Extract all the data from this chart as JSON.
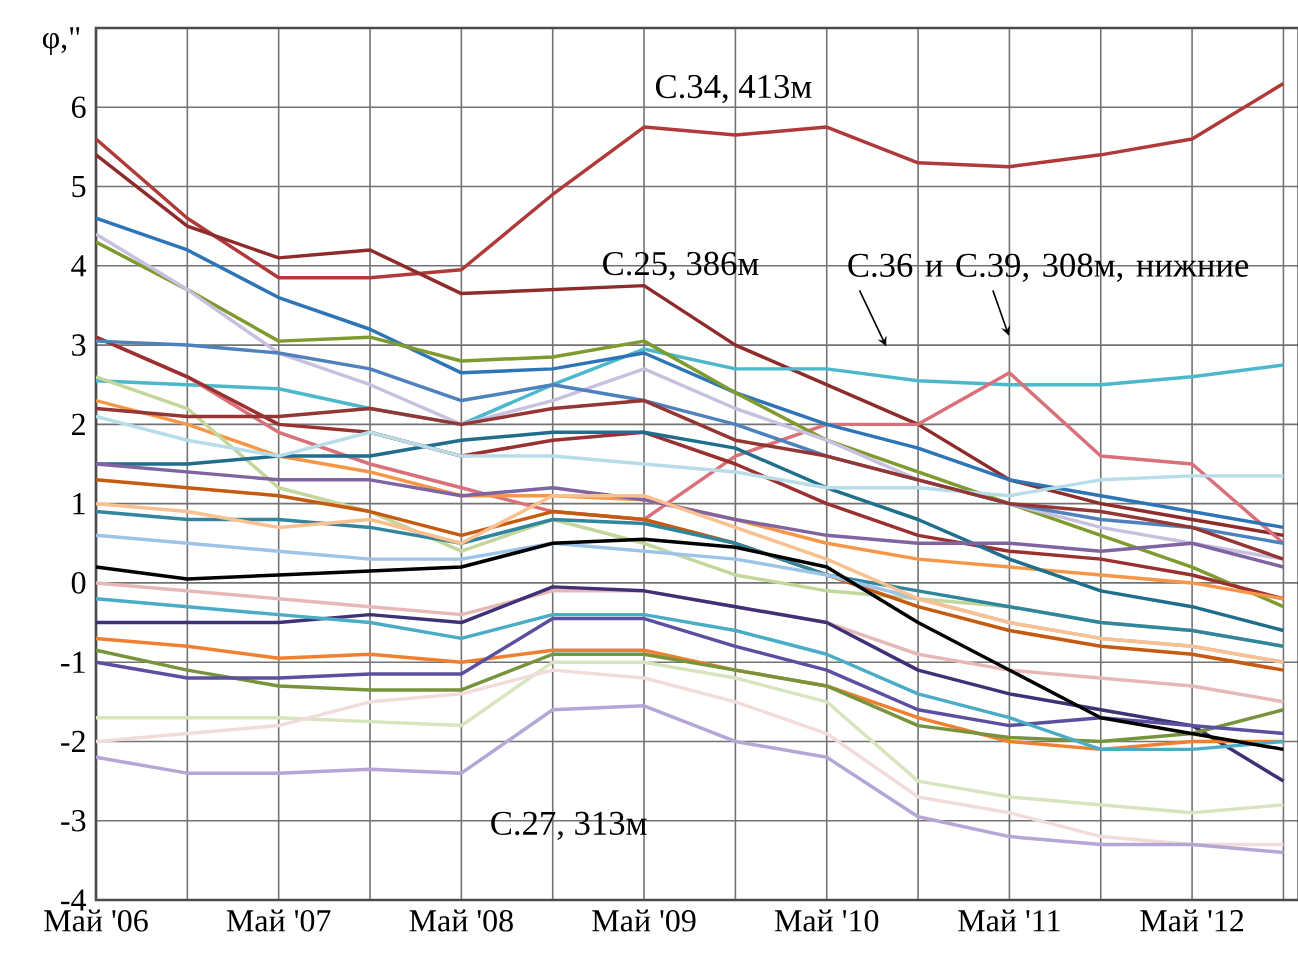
{
  "chart_data": {
    "type": "line",
    "ylabel": "φ,\"",
    "grid": true,
    "marker": "none",
    "line_style": "solid",
    "xlim": [
      "2006-05",
      "2012-12"
    ],
    "ylim": [
      -4,
      7
    ],
    "xticks": [
      {
        "value": "2006-05",
        "label": "Май '06"
      },
      {
        "value": "2006-11",
        "label": null
      },
      {
        "value": "2007-05",
        "label": "Май '07"
      },
      {
        "value": "2007-11",
        "label": null
      },
      {
        "value": "2008-05",
        "label": "Май '08"
      },
      {
        "value": "2008-11",
        "label": null
      },
      {
        "value": "2009-05",
        "label": "Май '09"
      },
      {
        "value": "2009-11",
        "label": null
      },
      {
        "value": "2010-05",
        "label": "Май '10"
      },
      {
        "value": "2010-11",
        "label": null
      },
      {
        "value": "2011-05",
        "label": "Май '11"
      },
      {
        "value": "2011-11",
        "label": null
      },
      {
        "value": "2012-05",
        "label": "Май '12"
      },
      {
        "value": "2012-11",
        "label": null
      }
    ],
    "yticks": [
      -4,
      -3,
      -2,
      -1,
      0,
      1,
      2,
      3,
      4,
      5,
      6
    ],
    "x": [
      "2006-05",
      "2006-11",
      "2007-05",
      "2007-11",
      "2008-05",
      "2008-11",
      "2009-05",
      "2009-11",
      "2010-05",
      "2010-11",
      "2011-05",
      "2011-11",
      "2012-05",
      "2012-11"
    ],
    "annotations": [
      "С.34, 413м",
      "С.25, 386м",
      "С.36 и С.39, 308м, нижние",
      "С.27, 313м"
    ],
    "series": [
      {
        "color": "#b03a3a",
        "values": [
          5.6,
          4.6,
          3.85,
          3.85,
          3.95,
          4.9,
          5.75,
          5.65,
          5.75,
          5.3,
          5.25,
          5.4,
          5.6,
          6.3
        ]
      },
      {
        "color": "#8e2c2c",
        "values": [
          5.4,
          4.5,
          4.1,
          4.2,
          3.65,
          3.7,
          3.75,
          3.0,
          2.5,
          2.0,
          1.3,
          1.0,
          0.8,
          0.6
        ]
      },
      {
        "color": "#4bb8cc",
        "values": [
          2.55,
          2.5,
          2.45,
          2.2,
          2.0,
          2.5,
          2.95,
          2.7,
          2.7,
          2.55,
          2.5,
          2.5,
          2.6,
          2.75
        ]
      },
      {
        "color": "#d9707a",
        "values": [
          3.1,
          2.6,
          1.9,
          1.5,
          1.2,
          0.9,
          0.8,
          1.6,
          2.0,
          2.0,
          2.65,
          1.6,
          1.5,
          0.5
        ]
      },
      {
        "color": "#2e75b6",
        "values": [
          4.6,
          4.2,
          3.6,
          3.2,
          2.65,
          2.7,
          2.9,
          2.4,
          2.0,
          1.7,
          1.3,
          1.1,
          0.9,
          0.7
        ]
      },
      {
        "color": "#7f9a2e",
        "values": [
          4.3,
          3.7,
          3.05,
          3.1,
          2.8,
          2.85,
          3.05,
          2.4,
          1.8,
          1.4,
          1.0,
          0.6,
          0.2,
          -0.3
        ]
      },
      {
        "color": "#c9c0e0",
        "values": [
          4.4,
          3.7,
          2.9,
          2.5,
          2.0,
          2.3,
          2.7,
          2.2,
          1.8,
          1.3,
          1.0,
          0.7,
          0.5,
          0.3
        ]
      },
      {
        "color": "#9b3030",
        "values": [
          3.1,
          2.6,
          2.0,
          1.9,
          1.6,
          1.8,
          1.9,
          1.5,
          1.0,
          0.6,
          0.4,
          0.3,
          0.1,
          -0.2
        ]
      },
      {
        "color": "#4f81bd",
        "values": [
          3.05,
          3.0,
          2.9,
          2.7,
          2.3,
          2.5,
          2.3,
          2.0,
          1.6,
          1.3,
          1.0,
          0.8,
          0.7,
          0.5
        ]
      },
      {
        "color": "#f79646",
        "values": [
          2.3,
          2.0,
          1.6,
          1.4,
          1.1,
          1.1,
          1.05,
          0.8,
          0.5,
          0.3,
          0.2,
          0.1,
          0.0,
          -0.2
        ]
      },
      {
        "color": "#c3d69b",
        "values": [
          2.6,
          2.2,
          1.2,
          0.9,
          0.4,
          0.8,
          0.5,
          0.1,
          -0.1,
          -0.2,
          -0.3,
          -0.5,
          -0.6,
          -0.8
        ]
      },
      {
        "color": "#1f6e8c",
        "values": [
          1.5,
          1.5,
          1.6,
          1.6,
          1.8,
          1.9,
          1.9,
          1.7,
          1.2,
          0.8,
          0.3,
          -0.1,
          -0.3,
          -0.6
        ]
      },
      {
        "color": "#8064a2",
        "values": [
          1.5,
          1.4,
          1.3,
          1.3,
          1.1,
          1.2,
          1.05,
          0.8,
          0.6,
          0.5,
          0.5,
          0.4,
          0.5,
          0.2
        ]
      },
      {
        "color": "#c55a11",
        "values": [
          1.3,
          1.2,
          1.1,
          0.9,
          0.6,
          0.9,
          0.8,
          0.5,
          0.1,
          -0.3,
          -0.6,
          -0.8,
          -0.9,
          -1.1
        ]
      },
      {
        "color": "#31859c",
        "values": [
          0.9,
          0.8,
          0.8,
          0.7,
          0.5,
          0.8,
          0.75,
          0.5,
          0.1,
          -0.1,
          -0.3,
          -0.5,
          -0.6,
          -0.8
        ]
      },
      {
        "color": "#9dc3e6",
        "values": [
          0.6,
          0.5,
          0.4,
          0.3,
          0.3,
          0.5,
          0.4,
          0.3,
          0.1,
          -0.2,
          -0.5,
          -0.7,
          -0.8,
          -1.0
        ]
      },
      {
        "color": "#e6b9b8",
        "values": [
          0.0,
          -0.1,
          -0.2,
          -0.3,
          -0.4,
          -0.1,
          -0.1,
          -0.3,
          -0.5,
          -0.9,
          -1.1,
          -1.2,
          -1.3,
          -1.5
        ]
      },
      {
        "color": "#403075",
        "values": [
          -0.5,
          -0.5,
          -0.5,
          -0.4,
          -0.5,
          -0.05,
          -0.1,
          -0.3,
          -0.5,
          -1.1,
          -1.4,
          -1.6,
          -1.8,
          -2.5
        ]
      },
      {
        "color": "#f08030",
        "values": [
          -0.7,
          -0.8,
          -0.95,
          -0.9,
          -1.0,
          -0.85,
          -0.85,
          -1.1,
          -1.3,
          -1.7,
          -2.0,
          -2.1,
          -2.0,
          -2.0
        ]
      },
      {
        "color": "#77933c",
        "values": [
          -0.85,
          -1.1,
          -1.3,
          -1.35,
          -1.35,
          -0.9,
          -0.9,
          -1.1,
          -1.3,
          -1.8,
          -1.95,
          -2.0,
          -1.9,
          -1.6
        ]
      },
      {
        "color": "#d7e4bd",
        "values": [
          -1.7,
          -1.7,
          -1.7,
          -1.75,
          -1.8,
          -1.0,
          -1.0,
          -1.2,
          -1.5,
          -2.5,
          -2.7,
          -2.8,
          -2.9,
          -2.8
        ]
      },
      {
        "color": "#f2dcdb",
        "values": [
          -2.0,
          -1.9,
          -1.8,
          -1.5,
          -1.4,
          -1.1,
          -1.2,
          -1.5,
          -1.9,
          -2.7,
          -2.9,
          -3.2,
          -3.3,
          -3.3
        ]
      },
      {
        "color": "#b4a7d6",
        "values": [
          -2.2,
          -2.4,
          -2.4,
          -2.35,
          -2.4,
          -1.6,
          -1.55,
          -2.0,
          -2.2,
          -2.95,
          -3.2,
          -3.3,
          -3.3,
          -3.4
        ]
      },
      {
        "color": "#5b4fa0",
        "values": [
          -1.0,
          -1.2,
          -1.2,
          -1.15,
          -1.15,
          -0.45,
          -0.45,
          -0.8,
          -1.1,
          -1.6,
          -1.8,
          -1.7,
          -1.8,
          -1.9
        ]
      },
      {
        "color": "#4bacc6",
        "values": [
          -0.2,
          -0.3,
          -0.4,
          -0.5,
          -0.7,
          -0.4,
          -0.4,
          -0.6,
          -0.9,
          -1.4,
          -1.7,
          -2.1,
          -2.1,
          -2.0
        ]
      },
      {
        "color": "#fac090",
        "values": [
          1.0,
          0.9,
          0.7,
          0.8,
          0.5,
          1.1,
          1.1,
          0.7,
          0.3,
          -0.2,
          -0.5,
          -0.7,
          -0.8,
          -1.0
        ]
      },
      {
        "color": "#b7dde8",
        "values": [
          2.1,
          1.8,
          1.6,
          1.9,
          1.6,
          1.6,
          1.5,
          1.4,
          1.2,
          1.2,
          1.1,
          1.3,
          1.35,
          1.35
        ]
      },
      {
        "color": "#943634",
        "values": [
          2.2,
          2.1,
          2.1,
          2.2,
          2.0,
          2.2,
          2.3,
          1.8,
          1.6,
          1.3,
          1.0,
          0.9,
          0.7,
          0.3
        ]
      },
      {
        "color": "#000000",
        "values": [
          0.2,
          0.05,
          0.1,
          0.15,
          0.2,
          0.5,
          0.55,
          0.45,
          0.2,
          -0.5,
          -1.1,
          -1.7,
          -1.9,
          -2.1
        ]
      }
    ]
  }
}
